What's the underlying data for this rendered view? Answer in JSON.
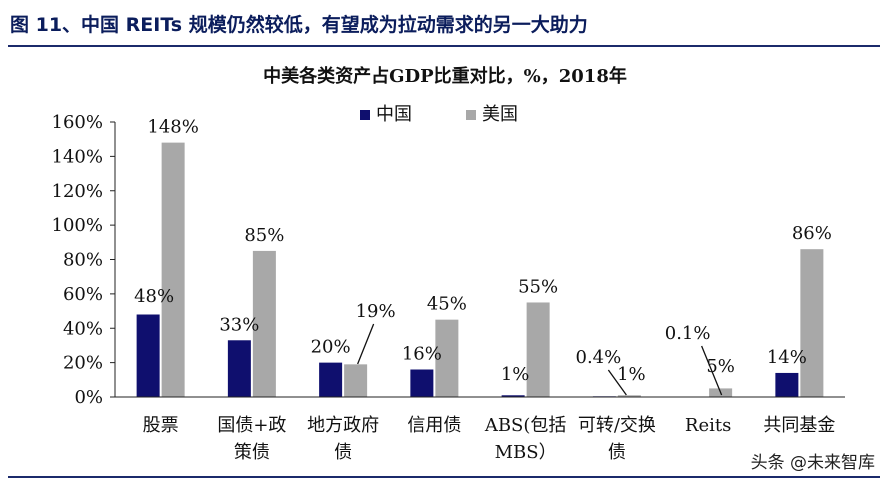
{
  "header": {
    "text": "图 11、中国 REITs 规模仍然较低，有望成为拉动需求的另一大助力"
  },
  "watermark": "头条 @未来智库",
  "chart_data": {
    "type": "bar",
    "title": "中美各类资产占GDP比重对比，%，2018年",
    "categories": [
      [
        "股票"
      ],
      [
        "国债+政",
        "策债"
      ],
      [
        "地方政府",
        "债"
      ],
      [
        "信用债"
      ],
      [
        "ABS(包括",
        "MBS）"
      ],
      [
        "可转/交换",
        "债"
      ],
      [
        "Reits"
      ],
      [
        "共同基金"
      ]
    ],
    "series": [
      {
        "name": "中国",
        "color": "#0f0f6e",
        "values": [
          48,
          33,
          20,
          16,
          1,
          0.4,
          0.1,
          14
        ],
        "labels": [
          "48%",
          "33%",
          "20%",
          "16%",
          "1%",
          "0.4%",
          "0.1%",
          "14%"
        ]
      },
      {
        "name": "美国",
        "color": "#a8a8a8",
        "values": [
          148,
          85,
          19,
          45,
          55,
          1,
          5,
          86
        ],
        "labels": [
          "148%",
          "85%",
          "19%",
          "45%",
          "55%",
          "1%",
          "5%",
          "86%"
        ]
      }
    ],
    "ylim": [
      0,
      160
    ],
    "yticks": [
      "0%",
      "20%",
      "40%",
      "60%",
      "80%",
      "100%",
      "120%",
      "140%",
      "160%"
    ],
    "xlabel": "",
    "ylabel": "",
    "legend": "top-center",
    "grid": false
  }
}
